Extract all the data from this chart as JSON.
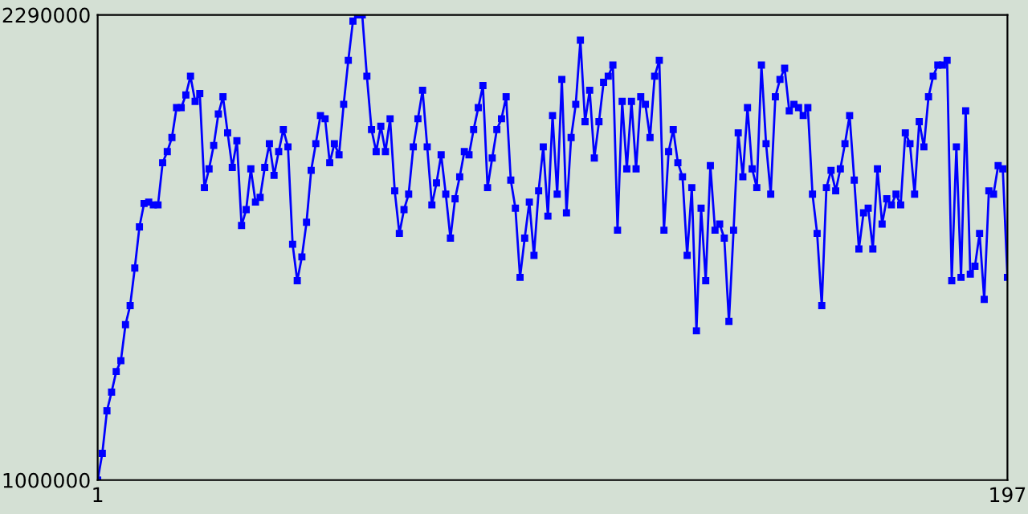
{
  "chart_data": {
    "type": "line",
    "x": [
      1,
      2,
      3,
      4,
      5,
      6,
      7,
      8,
      9,
      10,
      11,
      12,
      13,
      14,
      15,
      16,
      17,
      18,
      19,
      20,
      21,
      22,
      23,
      24,
      25,
      26,
      27,
      28,
      29,
      30,
      31,
      32,
      33,
      34,
      35,
      36,
      37,
      38,
      39,
      40,
      41,
      42,
      43,
      44,
      45,
      46,
      47,
      48,
      49,
      50,
      51,
      52,
      53,
      54,
      55,
      56,
      57,
      58,
      59,
      60,
      61,
      62,
      63,
      64,
      65,
      66,
      67,
      68,
      69,
      70,
      71,
      72,
      73,
      74,
      75,
      76,
      77,
      78,
      79,
      80,
      81,
      82,
      83,
      84,
      85,
      86,
      87,
      88,
      89,
      90,
      91,
      92,
      93,
      94,
      95,
      96,
      97,
      98,
      99,
      100,
      101,
      102,
      103,
      104,
      105,
      106,
      107,
      108,
      109,
      110,
      111,
      112,
      113,
      114,
      115,
      116,
      117,
      118,
      119,
      120,
      121,
      122,
      123,
      124,
      125,
      126,
      127,
      128,
      129,
      130,
      131,
      132,
      133,
      134,
      135,
      136,
      137,
      138,
      139,
      140,
      141,
      142,
      143,
      144,
      145,
      146,
      147,
      148,
      149,
      150,
      151,
      152,
      153,
      154,
      155,
      156,
      157,
      158,
      159,
      160,
      161,
      162,
      163,
      164,
      165,
      166,
      167,
      168,
      169,
      170,
      171,
      172,
      173,
      174,
      175,
      176,
      177,
      178,
      179,
      180,
      181,
      182,
      183,
      184,
      185,
      186,
      187,
      188,
      189,
      190,
      191,
      192,
      193,
      194,
      195,
      196,
      197
    ],
    "series": [
      {
        "color": "#0000ff",
        "values": [
          1000000,
          1074000,
          1192000,
          1244000,
          1301000,
          1331000,
          1431000,
          1484000,
          1588000,
          1702000,
          1767000,
          1771000,
          1763000,
          1763000,
          1880000,
          1911000,
          1950000,
          2033000,
          2033000,
          2068000,
          2120000,
          2050000,
          2072000,
          1811000,
          1863000,
          1928000,
          2015000,
          2063000,
          1963000,
          1867000,
          1941000,
          1706000,
          1750000,
          1863000,
          1771000,
          1784000,
          1867000,
          1933000,
          1845000,
          1911000,
          1972000,
          1924000,
          1654000,
          1553000,
          1619000,
          1715000,
          1859000,
          1933000,
          2011000,
          2002000,
          1880000,
          1933000,
          1902000,
          2042000,
          2164000,
          2273000,
          2290000,
          2290000,
          2120000,
          1972000,
          1911000,
          1981000,
          1911000,
          2002000,
          1802000,
          1684000,
          1750000,
          1793000,
          1924000,
          2002000,
          2081000,
          1924000,
          1763000,
          1824000,
          1902000,
          1793000,
          1671000,
          1780000,
          1841000,
          1911000,
          1902000,
          1972000,
          2033000,
          2094000,
          1811000,
          1893000,
          1972000,
          2002000,
          2063000,
          1832000,
          1754000,
          1562000,
          1671000,
          1771000,
          1623000,
          1802000,
          1924000,
          1732000,
          2011000,
          1793000,
          2111000,
          1741000,
          1950000,
          2042000,
          2220000,
          1994000,
          2081000,
          1893000,
          1994000,
          2103000,
          2120000,
          2151000,
          1693000,
          2050000,
          1863000,
          2050000,
          1863000,
          2063000,
          2042000,
          1950000,
          2120000,
          2164000,
          1693000,
          1911000,
          1972000,
          1880000,
          1841000,
          1623000,
          1811000,
          1414000,
          1754000,
          1553000,
          1872000,
          1693000,
          1710000,
          1671000,
          1440000,
          1693000,
          1963000,
          1841000,
          2033000,
          1863000,
          1811000,
          2151000,
          1933000,
          1793000,
          2063000,
          2111000,
          2142000,
          2024000,
          2042000,
          2033000,
          2011000,
          2033000,
          1793000,
          1684000,
          1484000,
          1811000,
          1859000,
          1802000,
          1863000,
          1933000,
          2011000,
          1832000,
          1641000,
          1741000,
          1754000,
          1641000,
          1863000,
          1710000,
          1780000,
          1763000,
          1793000,
          1763000,
          1963000,
          1933000,
          1793000,
          1994000,
          1924000,
          2063000,
          2120000,
          2151000,
          2151000,
          2164000,
          1553000,
          1924000,
          1562000,
          2024000,
          1571000,
          1593000,
          1684000,
          1501000,
          1802000,
          1793000,
          1872000,
          1863000,
          1562000
        ]
      }
    ],
    "xlim": [
      1,
      197
    ],
    "xticks": [
      1,
      197
    ],
    "ylim": [
      1000000,
      2290000
    ],
    "yticks": [
      1000000,
      2290000
    ],
    "marker": "square",
    "line_style": "solid",
    "grid": false
  }
}
